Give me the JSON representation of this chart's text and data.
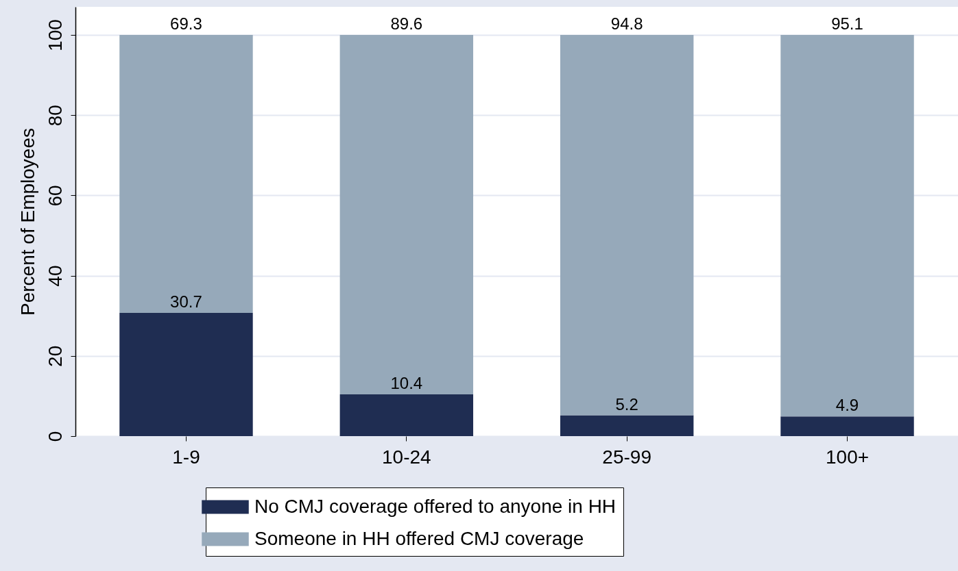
{
  "chart_data": {
    "type": "bar",
    "stacked": true,
    "ylabel": "Percent of Employees",
    "categories": [
      "1-9",
      "10-24",
      "25-99",
      "100+"
    ],
    "series": [
      {
        "name": "No CMJ coverage offered to anyone in HH",
        "color": "#1f2d52",
        "values": [
          30.7,
          10.4,
          5.2,
          4.9
        ]
      },
      {
        "name": "Someone in HH offered CMJ coverage",
        "color": "#96a9ba",
        "values": [
          69.3,
          89.6,
          94.8,
          95.1
        ]
      }
    ],
    "ylim": [
      0,
      107
    ],
    "yticks": [
      0,
      20,
      40,
      60,
      80,
      100
    ],
    "grid": "y",
    "legend": "bottom",
    "data_labels": true
  }
}
